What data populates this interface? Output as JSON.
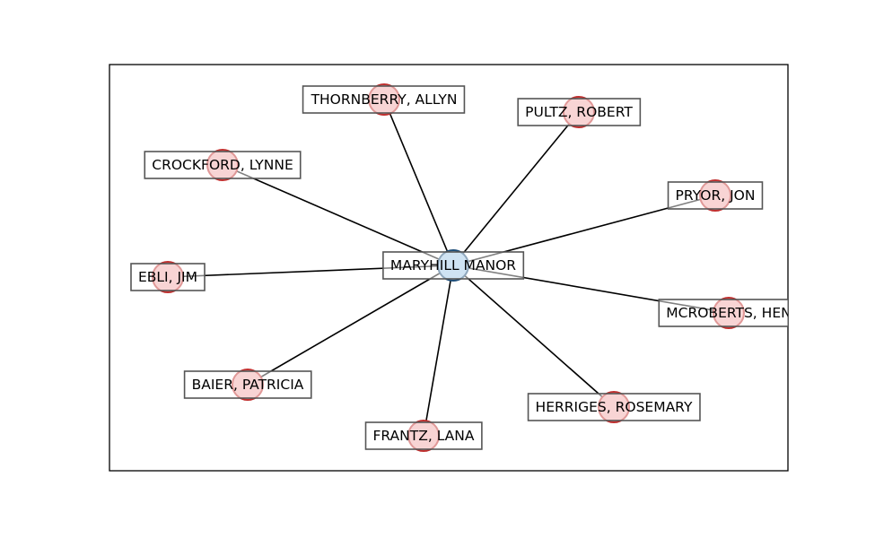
{
  "graph": {
    "type": "star-network",
    "center": {
      "label": "MARYHILL MANOR",
      "color": "#9ec7e6",
      "edge_color": "#1f4e79"
    },
    "leaf_style": {
      "fill": "#f0a8a8",
      "edge_color": "#c0302f"
    },
    "nodes": [
      {
        "label": "THORNBERRY, ALLYN"
      },
      {
        "label": "PULTZ, ROBERT"
      },
      {
        "label": "CROCKFORD, LYNNE"
      },
      {
        "label": "PRYOR, JON"
      },
      {
        "label": "EBLI, JIM"
      },
      {
        "label": "MCROBERTS, HEN"
      },
      {
        "label": "BAIER, PATRICIA"
      },
      {
        "label": "HERRIGES, ROSEMARY"
      },
      {
        "label": "FRANTZ, LANA"
      }
    ]
  }
}
